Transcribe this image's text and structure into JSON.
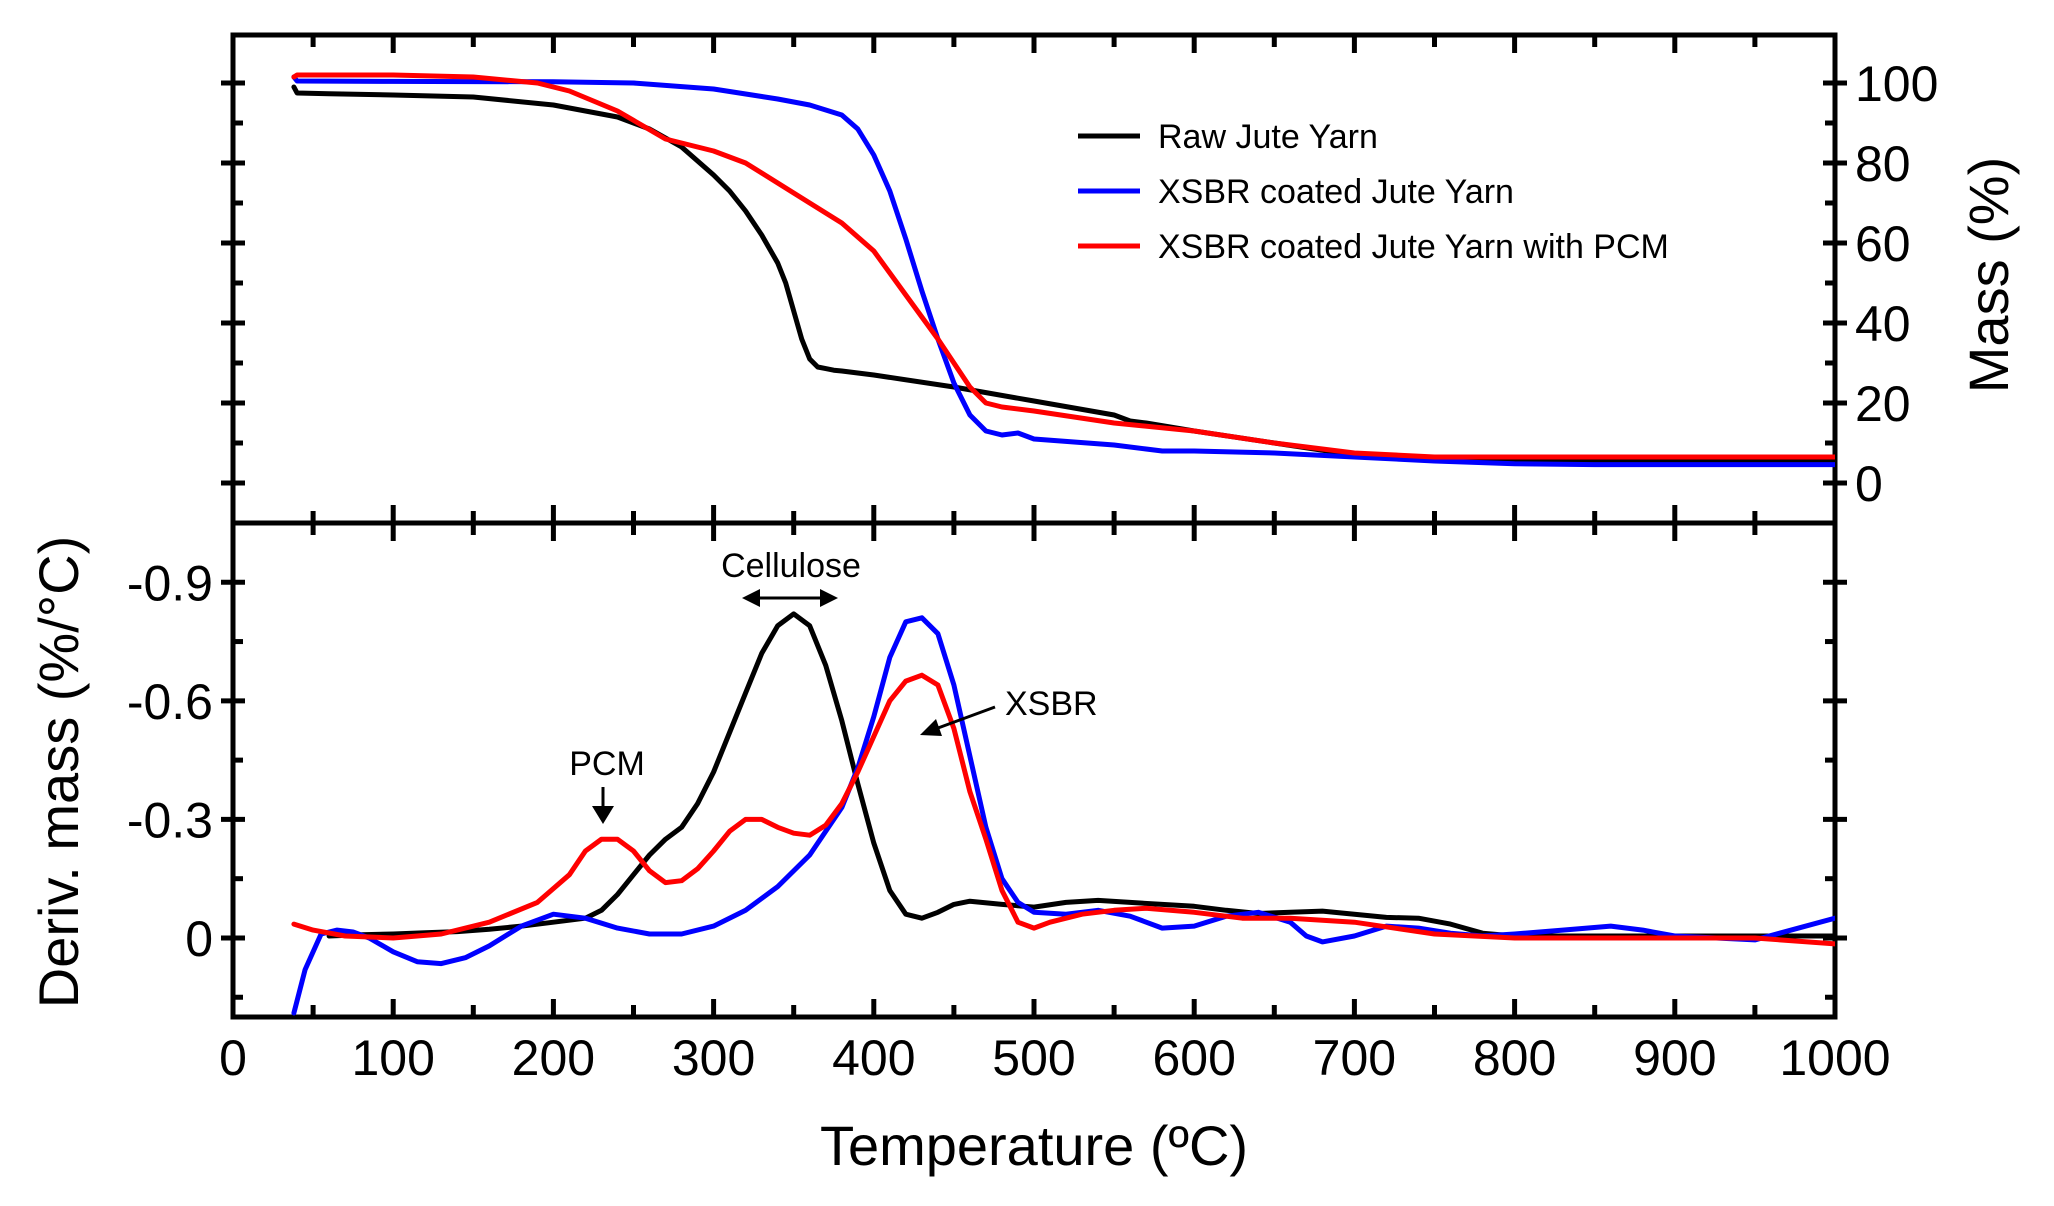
{
  "chart_data": [
    {
      "type": "line",
      "panel": "top",
      "title": "",
      "xlabel": "Temperature (ºC)",
      "ylabel": "Mass (%)",
      "xlim": [
        0,
        1000
      ],
      "ylim": [
        -10,
        112
      ],
      "y_axis_side": "right",
      "yticks": [
        0,
        20,
        40,
        60,
        80,
        100
      ],
      "ytick_labels": [
        "0",
        "20",
        "40",
        "60",
        "80",
        "100"
      ],
      "legend_position": "top-right",
      "series": [
        {
          "name": "Raw Jute Yarn",
          "color": "#000000",
          "x": [
            38,
            40,
            60,
            100,
            150,
            200,
            240,
            260,
            280,
            300,
            310,
            320,
            330,
            340,
            345,
            350,
            355,
            360,
            365,
            370,
            375,
            380,
            400,
            450,
            500,
            550,
            560,
            570,
            600,
            650,
            700,
            750,
            800,
            850,
            900,
            950,
            1000
          ],
          "y": [
            99,
            97.5,
            97.3,
            97.0,
            96.5,
            94.5,
            91.5,
            88.5,
            84,
            77,
            73,
            68,
            62,
            55,
            50,
            43,
            36,
            31,
            29,
            28.6,
            28.2,
            28,
            27,
            24,
            20.5,
            17,
            15.5,
            15,
            13,
            10,
            7,
            6,
            5.5,
            5.5,
            5.5,
            5.5,
            5.5
          ]
        },
        {
          "name": "XSBR coated Jute Yarn",
          "color": "#0000ff",
          "x": [
            38,
            40,
            100,
            200,
            250,
            300,
            340,
            360,
            380,
            390,
            400,
            410,
            420,
            430,
            440,
            450,
            460,
            470,
            480,
            490,
            500,
            550,
            570,
            580,
            600,
            650,
            700,
            750,
            800,
            850,
            900,
            950,
            1000
          ],
          "y": [
            101.5,
            100.5,
            100.4,
            100.3,
            100,
            98.5,
            96,
            94.5,
            92,
            88.5,
            82,
            73,
            61,
            48,
            36,
            25,
            17,
            13,
            12,
            12.5,
            11,
            9.5,
            8.5,
            8,
            8,
            7.5,
            6.5,
            5.5,
            4.8,
            4.6,
            4.6,
            4.6,
            4.6
          ]
        },
        {
          "name": "XSBR coated Jute Yarn with PCM",
          "color": "#ff0000",
          "x": [
            38,
            40,
            100,
            150,
            190,
            210,
            240,
            270,
            300,
            320,
            340,
            360,
            380,
            400,
            420,
            440,
            450,
            460,
            470,
            480,
            500,
            550,
            600,
            650,
            700,
            750,
            800,
            850,
            900,
            950,
            1000
          ],
          "y": [
            101.5,
            102,
            102,
            101.5,
            100,
            98,
            93,
            86,
            83,
            80,
            75,
            70,
            65,
            58,
            47,
            36,
            30,
            24,
            20,
            19,
            18,
            15,
            13,
            10,
            7.5,
            6.5,
            6.5,
            6.5,
            6.5,
            6.5,
            6.5
          ]
        }
      ]
    },
    {
      "type": "line",
      "panel": "bottom",
      "title": "",
      "xlabel": "Temperature (ºC)",
      "ylabel": "Deriv. mass (%/°C)",
      "xlim": [
        0,
        1000
      ],
      "ylim": [
        0.2,
        -1.05
      ],
      "y_axis_inverted": true,
      "yticks": [
        0,
        -0.3,
        -0.6,
        -0.9
      ],
      "ytick_labels": [
        "0",
        "-0.3",
        "-0.6",
        "-0.9"
      ],
      "xticks": [
        0,
        100,
        200,
        300,
        400,
        500,
        600,
        700,
        800,
        900,
        1000
      ],
      "xtick_labels": [
        "0",
        "100",
        "200",
        "300",
        "400",
        "500",
        "600",
        "700",
        "800",
        "900",
        "1000"
      ],
      "series": [
        {
          "name": "Raw Jute Yarn",
          "color": "#000000",
          "x": [
            60,
            80,
            100,
            120,
            140,
            160,
            180,
            200,
            220,
            230,
            240,
            250,
            260,
            270,
            280,
            290,
            300,
            310,
            320,
            330,
            340,
            350,
            360,
            370,
            380,
            390,
            400,
            410,
            420,
            430,
            440,
            450,
            460,
            480,
            500,
            520,
            540,
            560,
            580,
            600,
            620,
            640,
            660,
            680,
            700,
            720,
            740,
            760,
            780,
            800,
            850,
            900,
            950,
            1000
          ],
          "y": [
            -0.005,
            -0.008,
            -0.01,
            -0.013,
            -0.016,
            -0.022,
            -0.03,
            -0.04,
            -0.05,
            -0.07,
            -0.11,
            -0.16,
            -0.21,
            -0.25,
            -0.28,
            -0.34,
            -0.42,
            -0.52,
            -0.62,
            -0.72,
            -0.79,
            -0.82,
            -0.79,
            -0.69,
            -0.55,
            -0.39,
            -0.24,
            -0.12,
            -0.06,
            -0.05,
            -0.065,
            -0.085,
            -0.093,
            -0.085,
            -0.078,
            -0.09,
            -0.095,
            -0.09,
            -0.085,
            -0.08,
            -0.07,
            -0.062,
            -0.065,
            -0.068,
            -0.06,
            -0.052,
            -0.05,
            -0.035,
            -0.012,
            -0.005,
            -0.005,
            -0.005,
            -0.005,
            -0.005
          ]
        },
        {
          "name": "XSBR coated Jute Yarn",
          "color": "#0000ff",
          "x": [
            38,
            45,
            55,
            65,
            75,
            85,
            100,
            115,
            130,
            145,
            160,
            180,
            200,
            220,
            240,
            260,
            280,
            300,
            320,
            340,
            360,
            380,
            390,
            400,
            410,
            420,
            430,
            440,
            450,
            460,
            470,
            480,
            490,
            500,
            520,
            540,
            560,
            580,
            600,
            620,
            640,
            660,
            670,
            680,
            700,
            720,
            740,
            760,
            780,
            800,
            830,
            860,
            880,
            900,
            950,
            1000
          ],
          "y": [
            0.19,
            0.08,
            -0.01,
            -0.02,
            -0.015,
            0.0,
            0.035,
            0.06,
            0.065,
            0.05,
            0.02,
            -0.03,
            -0.06,
            -0.05,
            -0.025,
            -0.01,
            -0.01,
            -0.03,
            -0.07,
            -0.13,
            -0.21,
            -0.33,
            -0.43,
            -0.56,
            -0.71,
            -0.8,
            -0.81,
            -0.77,
            -0.64,
            -0.46,
            -0.28,
            -0.15,
            -0.09,
            -0.065,
            -0.06,
            -0.07,
            -0.055,
            -0.025,
            -0.03,
            -0.055,
            -0.065,
            -0.04,
            -0.005,
            0.01,
            -0.005,
            -0.03,
            -0.025,
            -0.012,
            -0.005,
            -0.01,
            -0.02,
            -0.03,
            -0.02,
            -0.005,
            0.005,
            -0.05
          ]
        },
        {
          "name": "XSBR coated Jute Yarn with PCM",
          "color": "#ff0000",
          "x": [
            38,
            50,
            70,
            100,
            130,
            160,
            190,
            210,
            220,
            230,
            240,
            250,
            260,
            270,
            280,
            290,
            300,
            310,
            320,
            330,
            340,
            350,
            360,
            370,
            380,
            390,
            400,
            410,
            420,
            430,
            440,
            450,
            460,
            470,
            480,
            490,
            500,
            510,
            530,
            550,
            570,
            600,
            630,
            660,
            700,
            750,
            800,
            850,
            900,
            950,
            1000
          ],
          "y": [
            -0.035,
            -0.02,
            -0.005,
            0.0,
            -0.01,
            -0.04,
            -0.09,
            -0.16,
            -0.22,
            -0.25,
            -0.25,
            -0.22,
            -0.17,
            -0.14,
            -0.145,
            -0.175,
            -0.22,
            -0.27,
            -0.3,
            -0.3,
            -0.28,
            -0.265,
            -0.26,
            -0.285,
            -0.34,
            -0.42,
            -0.51,
            -0.6,
            -0.65,
            -0.665,
            -0.64,
            -0.53,
            -0.37,
            -0.25,
            -0.12,
            -0.04,
            -0.025,
            -0.04,
            -0.06,
            -0.07,
            -0.075,
            -0.065,
            -0.05,
            -0.05,
            -0.04,
            -0.01,
            0.0,
            0.0,
            0.0,
            0.0,
            0.015
          ]
        }
      ],
      "annotations": [
        {
          "text": "PCM",
          "points_to": {
            "x": 234,
            "y": -0.28
          }
        },
        {
          "text": "Cellulose",
          "range_x": [
            318,
            376
          ],
          "at_y": -0.84
        },
        {
          "text": "XSBR",
          "points_to": {
            "x": 432,
            "y": -0.51
          }
        }
      ]
    }
  ]
}
